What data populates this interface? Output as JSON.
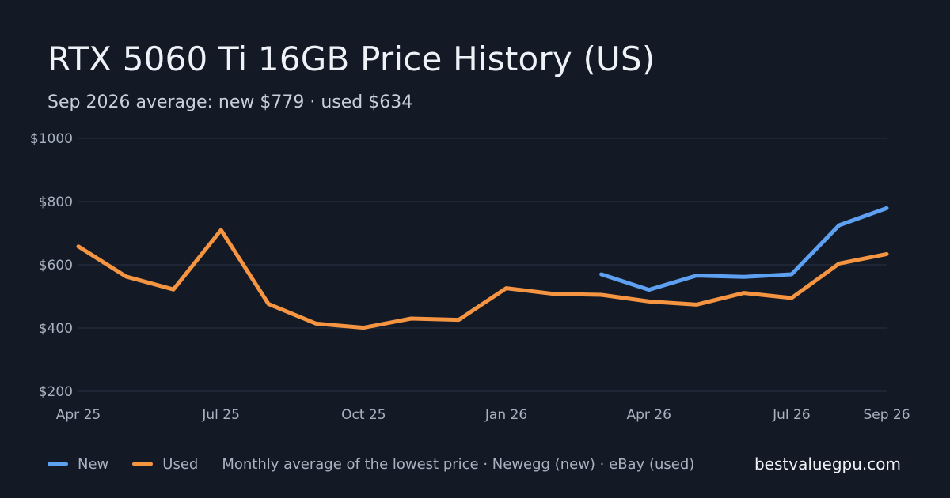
{
  "title": "RTX 5060 Ti 16GB Price History (US)",
  "subtitle": "Sep 2026 average: new $779 · used $634",
  "legend": {
    "new_label": "New",
    "used_label": "Used",
    "note": "Monthly average of the lowest price · Newegg (new) · eBay (used)"
  },
  "brand": "bestvaluegpu.com",
  "colors": {
    "background": "#131a26",
    "new": "#5ea0f2",
    "used": "#f59542",
    "grid": "#2a3344",
    "axis_text": "#a9b2c1"
  },
  "chart_data": {
    "type": "line",
    "months": [
      "Apr 25",
      "May 25",
      "Jun 25",
      "Jul 25",
      "Aug 25",
      "Sep 25",
      "Oct 25",
      "Nov 25",
      "Dec 25",
      "Jan 26",
      "Feb 26",
      "Mar 26",
      "Apr 26",
      "May 26",
      "Jun 26",
      "Jul 26",
      "Aug 26",
      "Sep 26"
    ],
    "x_ticks": [
      "Apr 25",
      "Jul 25",
      "Oct 25",
      "Jan 26",
      "Apr 26",
      "Jul 26",
      "Sep 26"
    ],
    "y_ticks": [
      200,
      400,
      600,
      800,
      1000
    ],
    "y_tick_labels": [
      "$200",
      "$400",
      "$600",
      "$800",
      "$1000"
    ],
    "ylim": [
      200,
      1000
    ],
    "grid": true,
    "series": [
      {
        "name": "Used",
        "color": "#f59542",
        "values": [
          658,
          563,
          522,
          710,
          476,
          414,
          401,
          430,
          426,
          526,
          508,
          505,
          484,
          474,
          511,
          495,
          604,
          634
        ]
      },
      {
        "name": "New",
        "color": "#5ea0f2",
        "values": [
          null,
          null,
          null,
          null,
          null,
          null,
          null,
          null,
          null,
          null,
          null,
          570,
          521,
          566,
          562,
          570,
          725,
          779
        ]
      }
    ]
  }
}
